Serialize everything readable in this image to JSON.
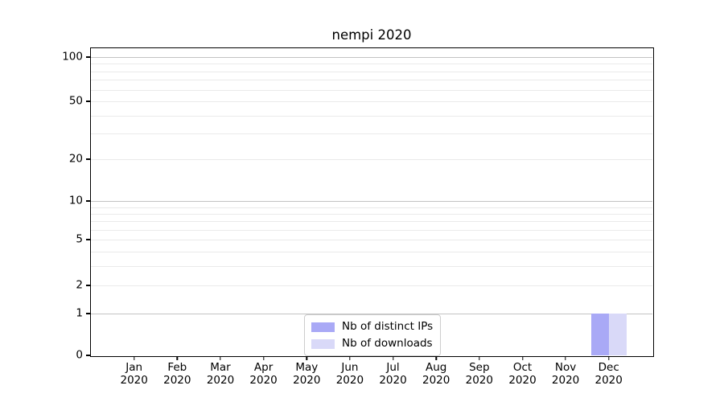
{
  "title": "nempi 2020",
  "chart_data": {
    "type": "bar",
    "title": "nempi 2020",
    "categories": [
      "Jan",
      "Feb",
      "Mar",
      "Apr",
      "May",
      "Jun",
      "Jul",
      "Aug",
      "Sep",
      "Oct",
      "Nov",
      "Dec"
    ],
    "category_year": "2020",
    "series": [
      {
        "name": "Nb of distinct IPs",
        "color": "#a9a9f6",
        "values": [
          0,
          0,
          0,
          0,
          0,
          0,
          0,
          0,
          0,
          0,
          0,
          1
        ]
      },
      {
        "name": "Nb of downloads",
        "color": "#d9d9f8",
        "values": [
          0,
          0,
          0,
          0,
          0,
          0,
          0,
          0,
          0,
          0,
          0,
          1
        ]
      }
    ],
    "yscale": "log1p",
    "ylim": [
      0,
      115
    ],
    "yticks": [
      0,
      1,
      2,
      5,
      10,
      20,
      50,
      100
    ],
    "decade_gridlines": [
      1,
      10,
      100
    ],
    "minor_gridlines": [
      2,
      3,
      4,
      5,
      6,
      7,
      8,
      9,
      20,
      30,
      40,
      50,
      60,
      70,
      80,
      90
    ],
    "grid": "on",
    "legend_position": "lower center",
    "colors": {
      "major_grid": "#c3c3c3",
      "minor_grid": "#eaeaea",
      "spine": "#000000"
    }
  }
}
